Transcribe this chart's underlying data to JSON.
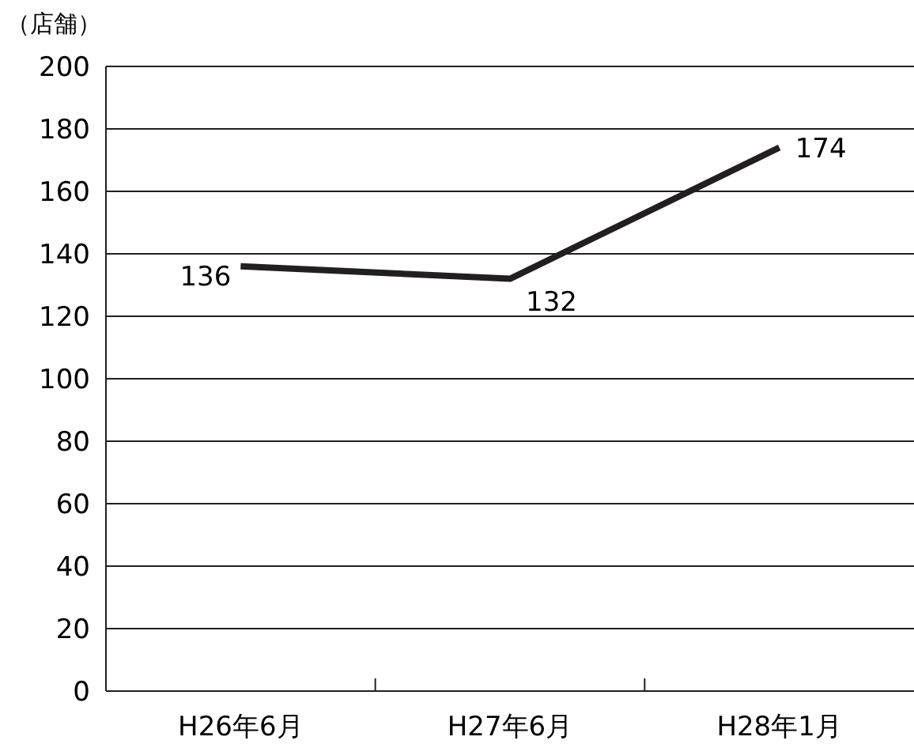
{
  "chart_data": {
    "type": "line",
    "ylabel": "（店舗）",
    "categories": [
      "H26年6月",
      "H27年6月",
      "H28年1月"
    ],
    "series": [
      {
        "color": "#231f20",
        "values": [
          136,
          132,
          174
        ]
      }
    ],
    "ylim": [
      0,
      200
    ],
    "yticks": [
      0,
      20,
      40,
      60,
      80,
      100,
      120,
      140,
      160,
      180,
      200
    ],
    "grid": "y",
    "data_labels": true,
    "marker": "none",
    "line_style": "solid"
  }
}
